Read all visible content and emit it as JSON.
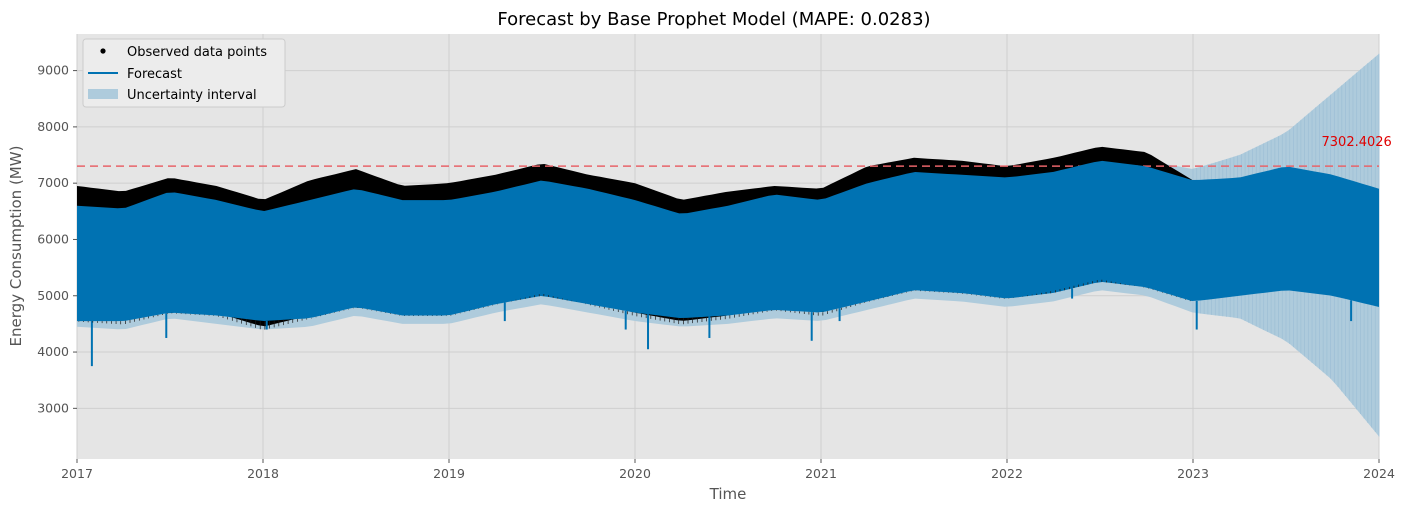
{
  "chart_data": {
    "type": "line",
    "title": "Forecast by Base Prophet Model (MAPE: 0.0283)",
    "xlabel": "Time",
    "ylabel": "Energy Consumption (MW)",
    "xlim": [
      2017,
      2024
    ],
    "ylim": [
      2100,
      9650
    ],
    "x_ticks": [
      "2017",
      "2018",
      "2019",
      "2020",
      "2021",
      "2022",
      "2023",
      "2024"
    ],
    "y_ticks": [
      3000,
      4000,
      5000,
      6000,
      7000,
      8000,
      9000
    ],
    "y_tick_labels": [
      "3000",
      "4000",
      "5000",
      "6000",
      "7000",
      "8000",
      "9000"
    ],
    "grid": true,
    "legend_position": "top-left",
    "legend": [
      {
        "label": "Observed data points",
        "kind": "marker"
      },
      {
        "label": "Forecast",
        "kind": "line"
      },
      {
        "label": "Uncertainty interval",
        "kind": "patch"
      }
    ],
    "reference_line": {
      "y": 7302.4026,
      "label": "7302.4026",
      "style": "dashed",
      "color": "#e8646a"
    },
    "observed_range": [
      2017,
      2023
    ],
    "forecast_range": [
      2017,
      2024
    ],
    "envelope": {
      "x": [
        2017.0,
        2017.25,
        2017.5,
        2017.75,
        2018.0,
        2018.25,
        2018.5,
        2018.75,
        2019.0,
        2019.25,
        2019.5,
        2019.75,
        2020.0,
        2020.25,
        2020.5,
        2020.75,
        2021.0,
        2021.25,
        2021.5,
        2021.75,
        2022.0,
        2022.25,
        2022.5,
        2022.75,
        2023.0,
        2023.25,
        2023.5,
        2023.75,
        2024.0
      ],
      "observed_high": [
        6950,
        6850,
        7100,
        6950,
        6700,
        7050,
        7250,
        6950,
        7000,
        7150,
        7350,
        7150,
        7000,
        6700,
        6850,
        6950,
        6900,
        7300,
        7450,
        7400,
        7300,
        7450,
        7650,
        7550,
        7050,
        null,
        null,
        null,
        null
      ],
      "forecast_high": [
        6600,
        6550,
        6850,
        6700,
        6500,
        6700,
        6900,
        6700,
        6700,
        6850,
        7050,
        6900,
        6700,
        6450,
        6600,
        6800,
        6700,
        7000,
        7200,
        7150,
        7100,
        7200,
        7400,
        7300,
        7050,
        7100,
        7300,
        7150,
        6900
      ],
      "forecast_low": [
        4550,
        4550,
        4700,
        4650,
        4550,
        4600,
        4800,
        4650,
        4650,
        4850,
        5000,
        4850,
        4700,
        4600,
        4650,
        4750,
        4700,
        4900,
        5100,
        5050,
        4950,
        5050,
        5250,
        5150,
        4900,
        5000,
        5100,
        5000,
        4800
      ],
      "observed_low": [
        4600,
        4550,
        4750,
        4700,
        4450,
        4650,
        4850,
        4700,
        4700,
        4900,
        5100,
        4900,
        4700,
        4550,
        4650,
        4800,
        4700,
        4950,
        5150,
        5100,
        5000,
        5150,
        5350,
        5200,
        4950,
        null,
        null,
        null,
        null
      ],
      "band_high": [
        6700,
        6650,
        6950,
        6800,
        6600,
        6800,
        7000,
        6800,
        6800,
        6950,
        7150,
        7000,
        6800,
        6600,
        6700,
        6900,
        6800,
        7100,
        7300,
        7250,
        7200,
        7300,
        7500,
        7400,
        7250,
        7500,
        7900,
        8600,
        9300
      ],
      "band_low": [
        4450,
        4400,
        4600,
        4500,
        4400,
        4450,
        4650,
        4500,
        4500,
        4700,
        4850,
        4700,
        4550,
        4450,
        4500,
        4600,
        4550,
        4750,
        4950,
        4900,
        4800,
        4900,
        5100,
        5000,
        4700,
        4600,
        4200,
        3500,
        2500
      ]
    },
    "dips": [
      {
        "x": 2017.08,
        "y": 3750
      },
      {
        "x": 2017.48,
        "y": 4250
      },
      {
        "x": 2018.02,
        "y": 4400
      },
      {
        "x": 2019.3,
        "y": 4550
      },
      {
        "x": 2019.95,
        "y": 4400
      },
      {
        "x": 2020.07,
        "y": 4050
      },
      {
        "x": 2020.4,
        "y": 4250
      },
      {
        "x": 2020.95,
        "y": 4200
      },
      {
        "x": 2021.1,
        "y": 4550
      },
      {
        "x": 2022.35,
        "y": 4950
      },
      {
        "x": 2023.02,
        "y": 4400
      },
      {
        "x": 2023.85,
        "y": 4550
      }
    ]
  }
}
